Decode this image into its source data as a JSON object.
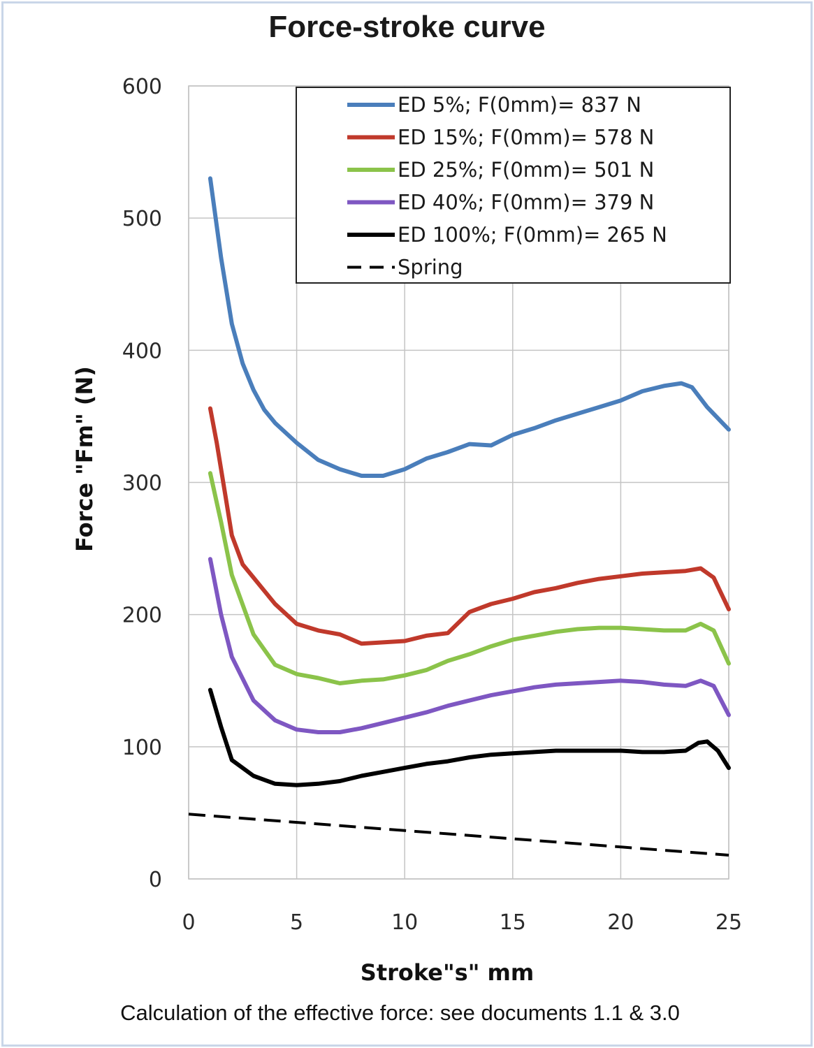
{
  "chart_data": {
    "type": "line",
    "title": "Force-stroke curve",
    "xlabel": "Stroke\"s\" mm",
    "ylabel": "Force \"Fm\" (N)",
    "xlim": [
      0,
      25
    ],
    "ylim": [
      0,
      600
    ],
    "xticks": [
      "0",
      "5",
      "10",
      "15",
      "20",
      "25"
    ],
    "yticks": [
      "0",
      "100",
      "200",
      "300",
      "400",
      "500",
      "600"
    ],
    "grid": true,
    "legend_position": "top-right",
    "series": [
      {
        "name": "ED 5%; F(0mm)= 837 N",
        "color": "#4a7ebb",
        "dash": false,
        "points": [
          [
            1,
            530
          ],
          [
            1.5,
            470
          ],
          [
            2,
            420
          ],
          [
            2.5,
            390
          ],
          [
            3,
            370
          ],
          [
            3.5,
            355
          ],
          [
            4,
            345
          ],
          [
            5,
            330
          ],
          [
            6,
            317
          ],
          [
            7,
            310
          ],
          [
            8,
            305
          ],
          [
            9,
            305
          ],
          [
            10,
            310
          ],
          [
            11,
            318
          ],
          [
            12,
            323
          ],
          [
            13,
            329
          ],
          [
            14,
            328
          ],
          [
            15,
            336
          ],
          [
            16,
            341
          ],
          [
            17,
            347
          ],
          [
            18,
            352
          ],
          [
            19,
            357
          ],
          [
            20,
            362
          ],
          [
            21,
            369
          ],
          [
            22,
            373
          ],
          [
            22.8,
            375
          ],
          [
            23.3,
            372
          ],
          [
            24,
            357
          ],
          [
            25,
            340
          ]
        ]
      },
      {
        "name": "ED 15%; F(0mm)= 578 N",
        "color": "#c0392b",
        "dash": false,
        "points": [
          [
            1,
            356
          ],
          [
            1.3,
            330
          ],
          [
            1.7,
            290
          ],
          [
            2,
            260
          ],
          [
            2.5,
            238
          ],
          [
            3,
            228
          ],
          [
            4,
            208
          ],
          [
            5,
            193
          ],
          [
            6,
            188
          ],
          [
            7,
            185
          ],
          [
            8,
            178
          ],
          [
            9,
            179
          ],
          [
            10,
            180
          ],
          [
            11,
            184
          ],
          [
            12,
            186
          ],
          [
            13,
            202
          ],
          [
            14,
            208
          ],
          [
            15,
            212
          ],
          [
            16,
            217
          ],
          [
            17,
            220
          ],
          [
            18,
            224
          ],
          [
            19,
            227
          ],
          [
            20,
            229
          ],
          [
            21,
            231
          ],
          [
            22,
            232
          ],
          [
            23,
            233
          ],
          [
            23.7,
            235
          ],
          [
            24.3,
            228
          ],
          [
            25,
            204
          ]
        ]
      },
      {
        "name": "ED 25%; F(0mm)= 501 N",
        "color": "#8bc34a",
        "dash": false,
        "points": [
          [
            1,
            307
          ],
          [
            1.5,
            270
          ],
          [
            2,
            230
          ],
          [
            3,
            185
          ],
          [
            4,
            162
          ],
          [
            5,
            155
          ],
          [
            6,
            152
          ],
          [
            7,
            148
          ],
          [
            8,
            150
          ],
          [
            9,
            151
          ],
          [
            10,
            154
          ],
          [
            11,
            158
          ],
          [
            12,
            165
          ],
          [
            13,
            170
          ],
          [
            14,
            176
          ],
          [
            15,
            181
          ],
          [
            16,
            184
          ],
          [
            17,
            187
          ],
          [
            18,
            189
          ],
          [
            19,
            190
          ],
          [
            20,
            190
          ],
          [
            21,
            189
          ],
          [
            22,
            188
          ],
          [
            23,
            188
          ],
          [
            23.7,
            193
          ],
          [
            24.3,
            188
          ],
          [
            25,
            163
          ]
        ]
      },
      {
        "name": "ED 40%; F(0mm)= 379 N",
        "color": "#7e57c2",
        "dash": false,
        "points": [
          [
            1,
            242
          ],
          [
            1.5,
            200
          ],
          [
            2,
            168
          ],
          [
            3,
            135
          ],
          [
            4,
            120
          ],
          [
            5,
            113
          ],
          [
            6,
            111
          ],
          [
            7,
            111
          ],
          [
            8,
            114
          ],
          [
            9,
            118
          ],
          [
            10,
            122
          ],
          [
            11,
            126
          ],
          [
            12,
            131
          ],
          [
            13,
            135
          ],
          [
            14,
            139
          ],
          [
            15,
            142
          ],
          [
            16,
            145
          ],
          [
            17,
            147
          ],
          [
            18,
            148
          ],
          [
            19,
            149
          ],
          [
            20,
            150
          ],
          [
            21,
            149
          ],
          [
            22,
            147
          ],
          [
            23,
            146
          ],
          [
            23.7,
            150
          ],
          [
            24.3,
            146
          ],
          [
            25,
            124
          ]
        ]
      },
      {
        "name": "ED 100%; F(0mm)= 265 N",
        "color": "#000000",
        "dash": false,
        "points": [
          [
            1,
            143
          ],
          [
            1.5,
            115
          ],
          [
            2,
            90
          ],
          [
            3,
            78
          ],
          [
            4,
            72
          ],
          [
            5,
            71
          ],
          [
            6,
            72
          ],
          [
            7,
            74
          ],
          [
            8,
            78
          ],
          [
            9,
            81
          ],
          [
            10,
            84
          ],
          [
            11,
            87
          ],
          [
            12,
            89
          ],
          [
            13,
            92
          ],
          [
            14,
            94
          ],
          [
            15,
            95
          ],
          [
            16,
            96
          ],
          [
            17,
            97
          ],
          [
            18,
            97
          ],
          [
            19,
            97
          ],
          [
            20,
            97
          ],
          [
            21,
            96
          ],
          [
            22,
            96
          ],
          [
            23,
            97
          ],
          [
            23.6,
            103
          ],
          [
            24,
            104
          ],
          [
            24.5,
            97
          ],
          [
            25,
            84
          ]
        ]
      },
      {
        "name": "Spring",
        "color": "#000000",
        "dash": true,
        "points": [
          [
            0,
            49
          ],
          [
            25,
            18
          ]
        ]
      }
    ]
  },
  "caption": "Calculation of the effective force: see documents 1.1 & 3.0"
}
